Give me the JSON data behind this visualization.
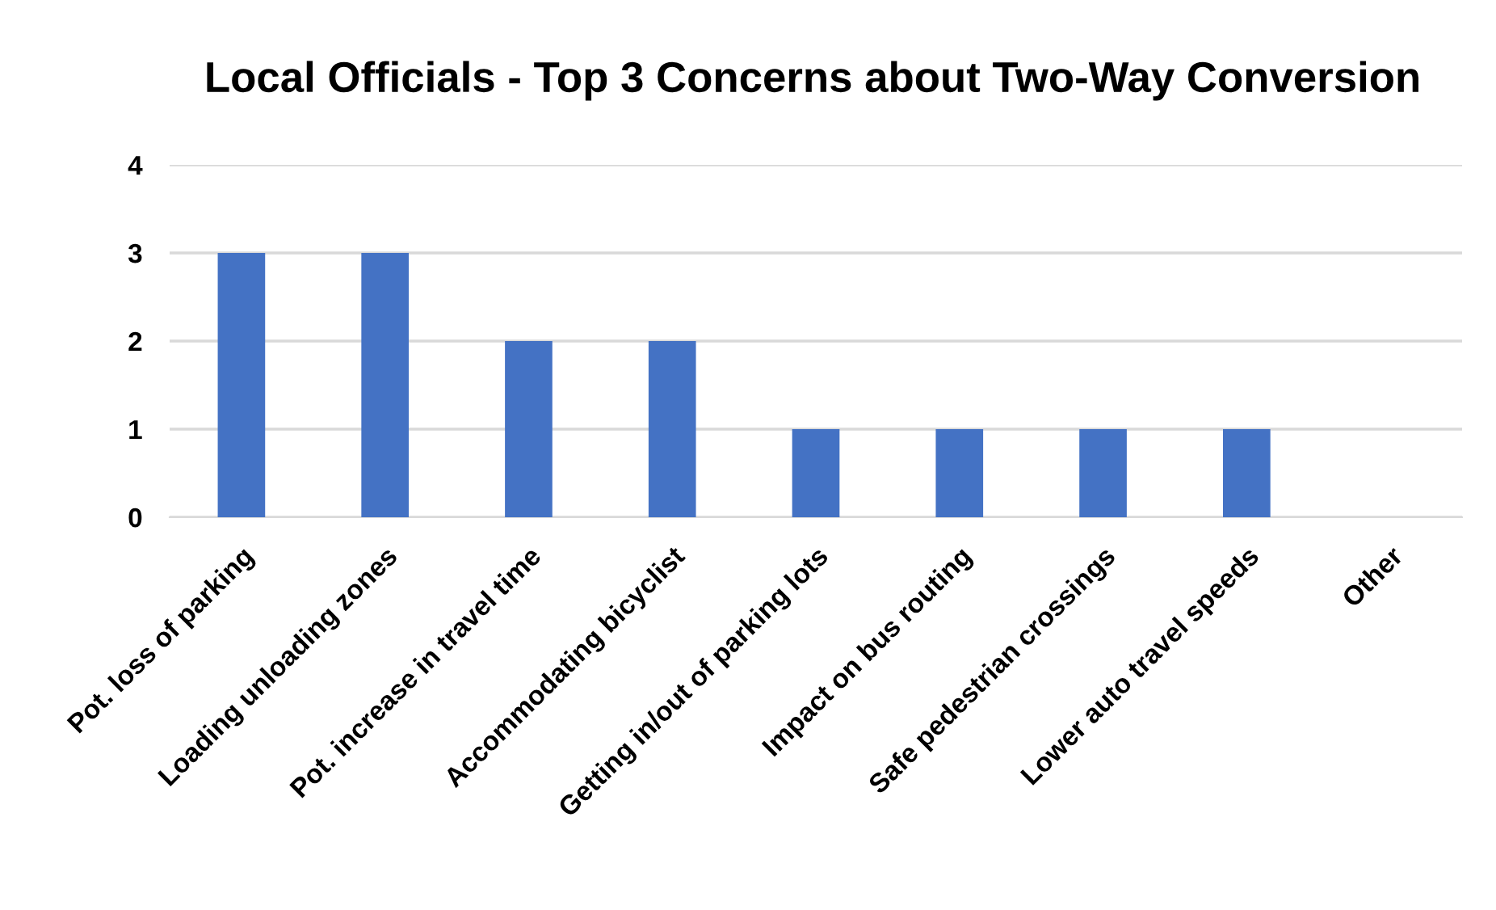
{
  "chart_data": {
    "type": "bar",
    "title": "Local Officials - Top 3 Concerns about Two-Way Conversion",
    "categories": [
      "Pot. loss of parking",
      "Loading unloading zones",
      "Pot. increase in travel time",
      "Accommodating bicyclist",
      "Getting in/out of parking lots",
      "Impact on bus routing",
      "Safe pedestrian crossings",
      "Lower auto travel speeds",
      "Other"
    ],
    "values": [
      3,
      3,
      2,
      2,
      1,
      1,
      1,
      1,
      0
    ],
    "color": "#4472c4",
    "ylim": [
      0,
      4
    ],
    "yticks": [
      0,
      1,
      2,
      3,
      4
    ],
    "grid": "y",
    "legend": false
  }
}
